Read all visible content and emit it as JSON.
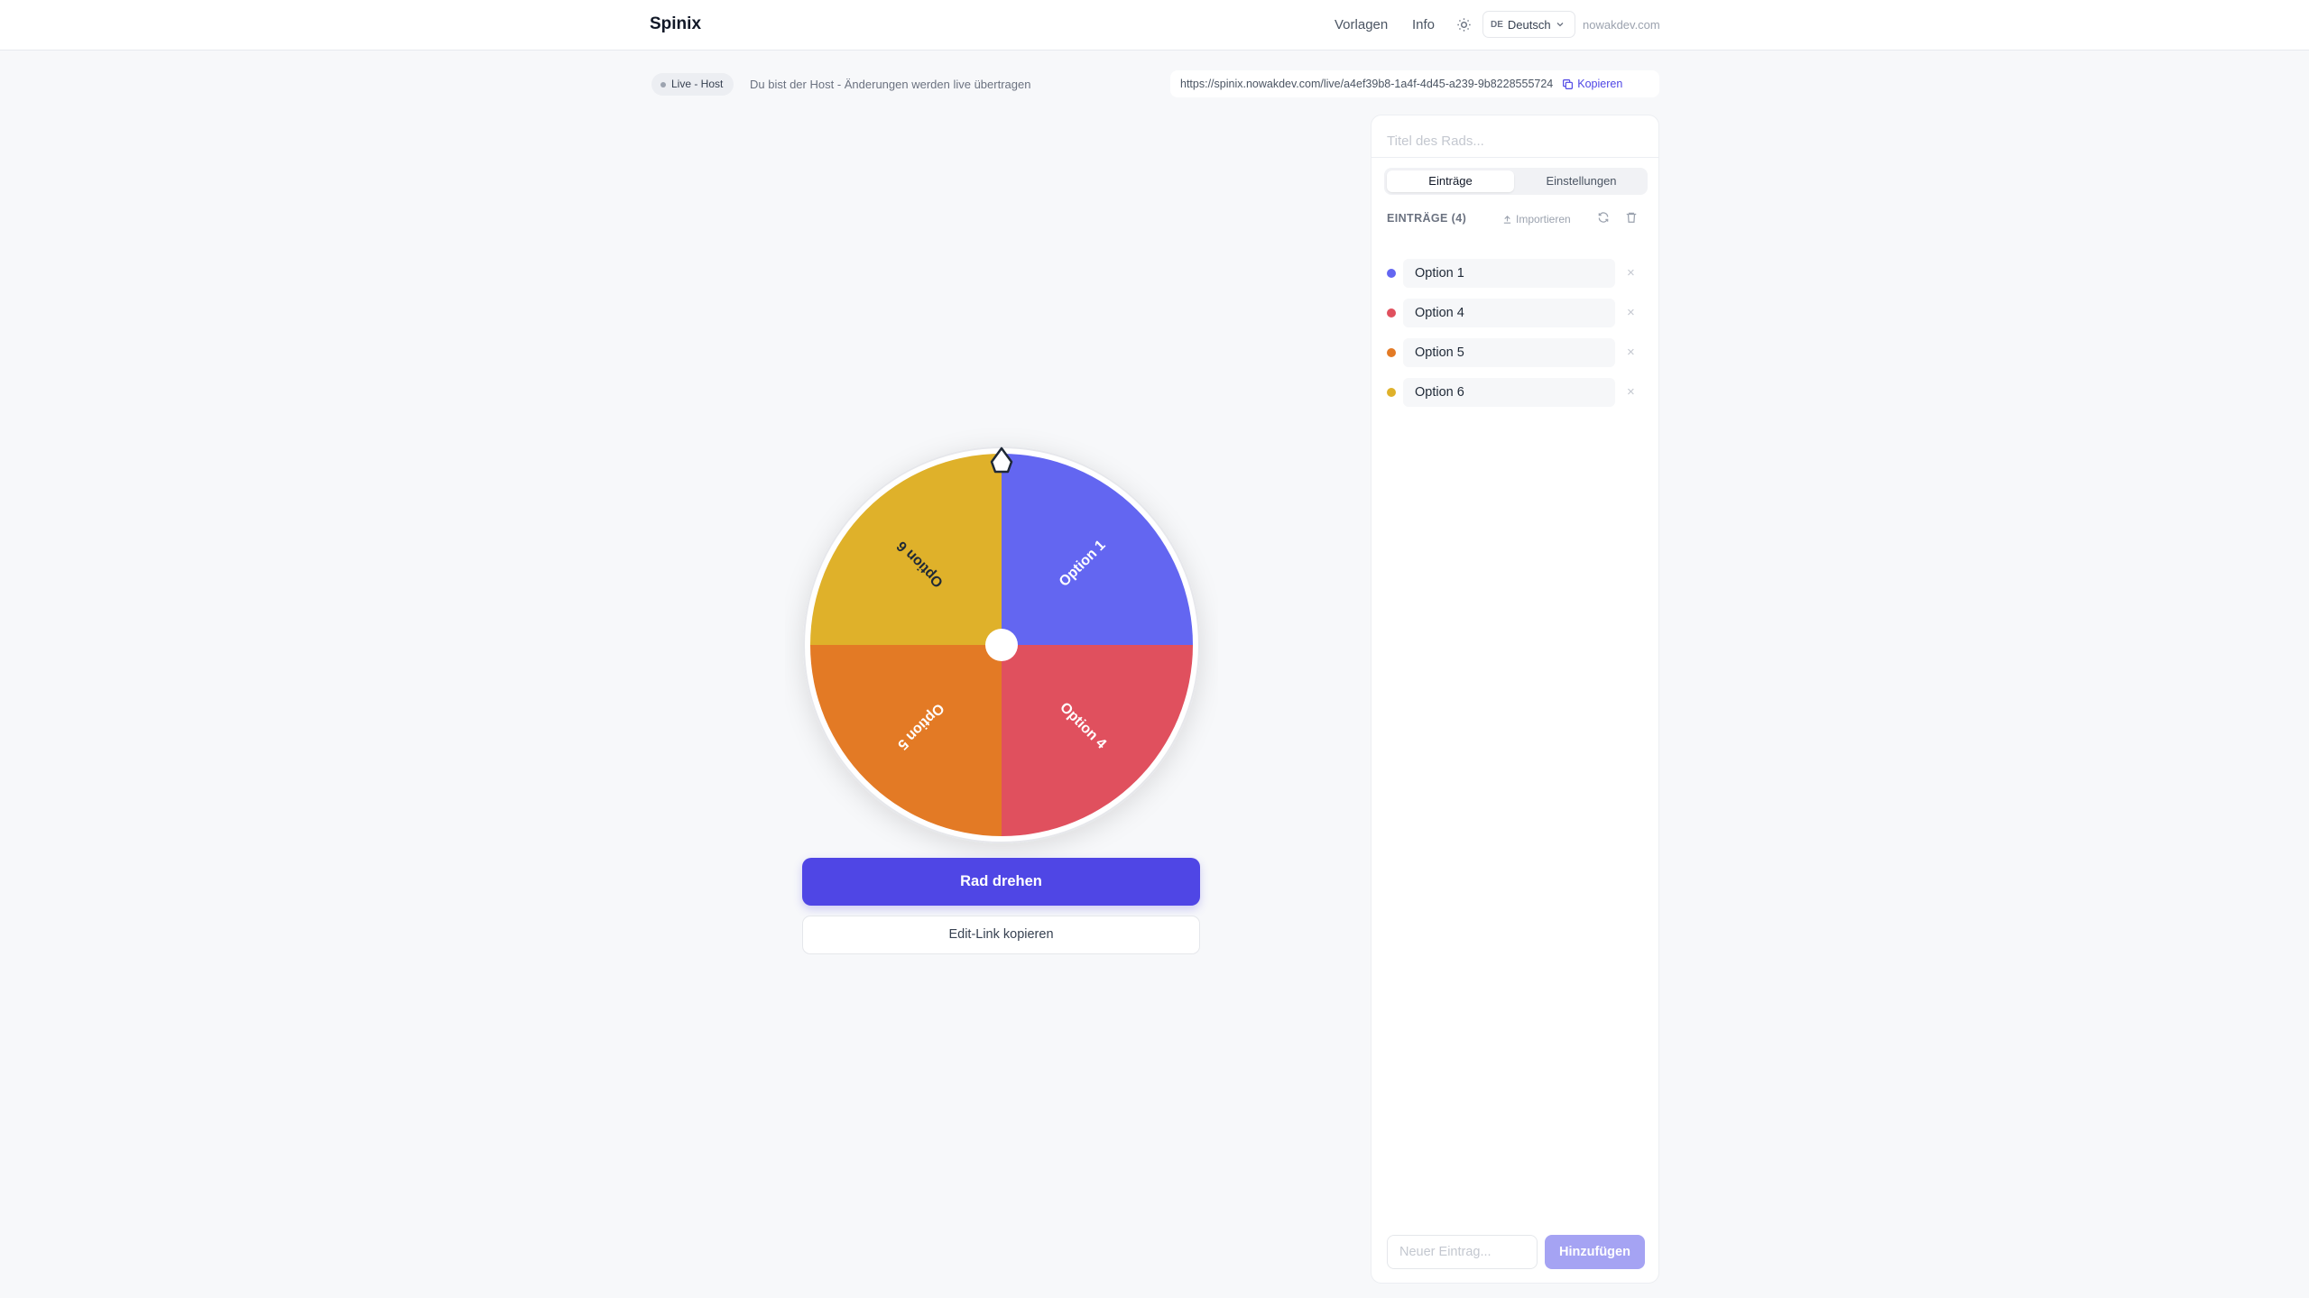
{
  "header": {
    "brand": "Spinix",
    "nav": [
      "Vorlagen",
      "Info"
    ],
    "language": {
      "code": "DE",
      "name": "Deutsch"
    },
    "site": "nowakdev.com"
  },
  "session": {
    "badge": "Live - Host",
    "note": "Du bist der Host - Änderungen werden live übertragen",
    "url": "https://spinix.nowakdev.com/live/a4ef39b8-1a4f-4d45-a239-9b8228555724",
    "copy": "Kopieren"
  },
  "wheel": {
    "spin_button": "Rad drehen",
    "edit_link_button": "Edit-Link kopieren"
  },
  "panel": {
    "title_placeholder": "Titel des Rads...",
    "tabs": [
      "Einträge",
      "Einstellungen"
    ],
    "entries_heading": "EINTRÄGE (4)",
    "import": "Importieren",
    "entries": [
      {
        "label": "Option 1",
        "color": "#6366f1"
      },
      {
        "label": "Option 4",
        "color": "#e0505e"
      },
      {
        "label": "Option 5",
        "color": "#e37a25"
      },
      {
        "label": "Option 6",
        "color": "#dfb12a"
      }
    ],
    "new_entry_placeholder": "Neuer Eintrag...",
    "add_button": "Hinzufügen"
  }
}
